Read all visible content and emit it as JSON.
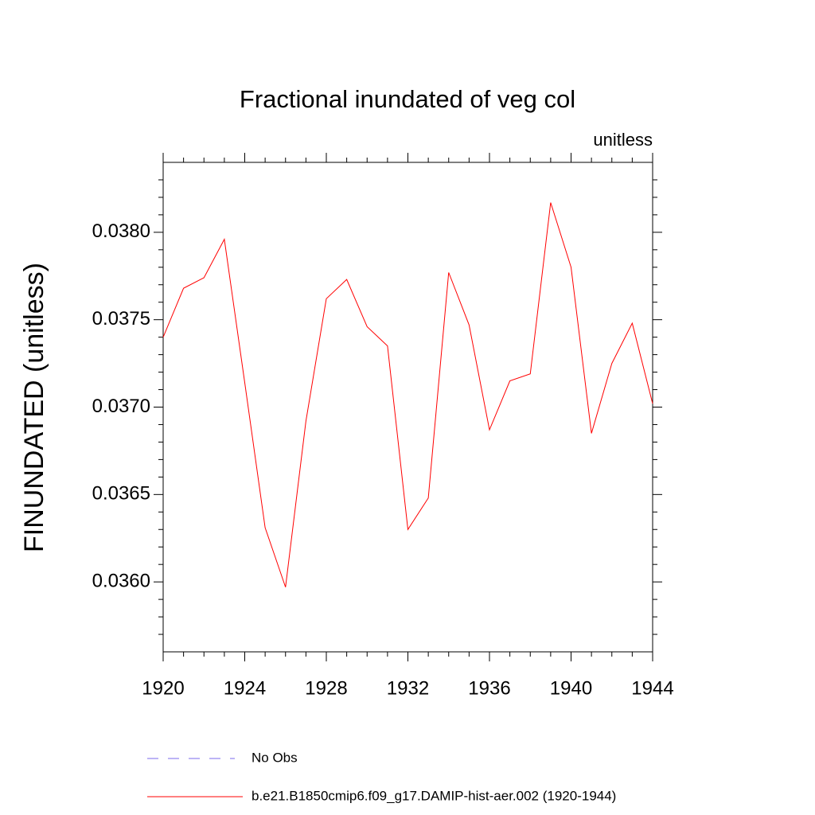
{
  "chart_data": {
    "type": "line",
    "title": "Fractional inundated of veg col",
    "subtitle": "unitless",
    "y_label": "FINUNDATED  (unitless)",
    "x": [
      1920,
      1921,
      1922,
      1923,
      1924,
      1925,
      1926,
      1927,
      1928,
      1929,
      1930,
      1931,
      1932,
      1933,
      1934,
      1935,
      1936,
      1937,
      1938,
      1939,
      1940,
      1941,
      1942,
      1943,
      1944
    ],
    "series": [
      {
        "name": "b.e21.B1850cmip6.f09_g17.DAMIP-hist-aer.002 (1920-1944)",
        "color": "#ff0000",
        "values": [
          0.0374,
          0.03768,
          0.03774,
          0.03796,
          0.03714,
          0.03631,
          0.03597,
          0.03692,
          0.03762,
          0.03773,
          0.03746,
          0.03735,
          0.0363,
          0.03648,
          0.03777,
          0.03747,
          0.03687,
          0.03715,
          0.03719,
          0.03817,
          0.0378,
          0.03685,
          0.03725,
          0.03748,
          0.03702
        ]
      }
    ],
    "extra_legend": {
      "name": "No Obs",
      "color": "#7b68ee",
      "dashed": true
    },
    "xlim": [
      1920,
      1944
    ],
    "xticks": [
      1920,
      1924,
      1928,
      1932,
      1936,
      1940,
      1944
    ],
    "xminorticks": [
      1921,
      1922,
      1923,
      1925,
      1926,
      1927,
      1929,
      1930,
      1931,
      1933,
      1934,
      1935,
      1937,
      1938,
      1939,
      1941,
      1942,
      1943
    ],
    "ylim": [
      0.0356,
      0.0384
    ],
    "yticks": [
      {
        "value": 0.036,
        "label": "0.0360"
      },
      {
        "value": 0.0365,
        "label": "0.0365"
      },
      {
        "value": 0.037,
        "label": "0.0370"
      },
      {
        "value": 0.0375,
        "label": "0.0375"
      },
      {
        "value": 0.038,
        "label": "0.0380"
      }
    ],
    "yminorticks": [
      0.0357,
      0.0358,
      0.0359,
      0.0361,
      0.0362,
      0.0363,
      0.0364,
      0.0366,
      0.0367,
      0.0368,
      0.0369,
      0.0371,
      0.0372,
      0.0373,
      0.0374,
      0.0376,
      0.0377,
      0.0378,
      0.0379,
      0.0381,
      0.0382,
      0.0383
    ]
  }
}
